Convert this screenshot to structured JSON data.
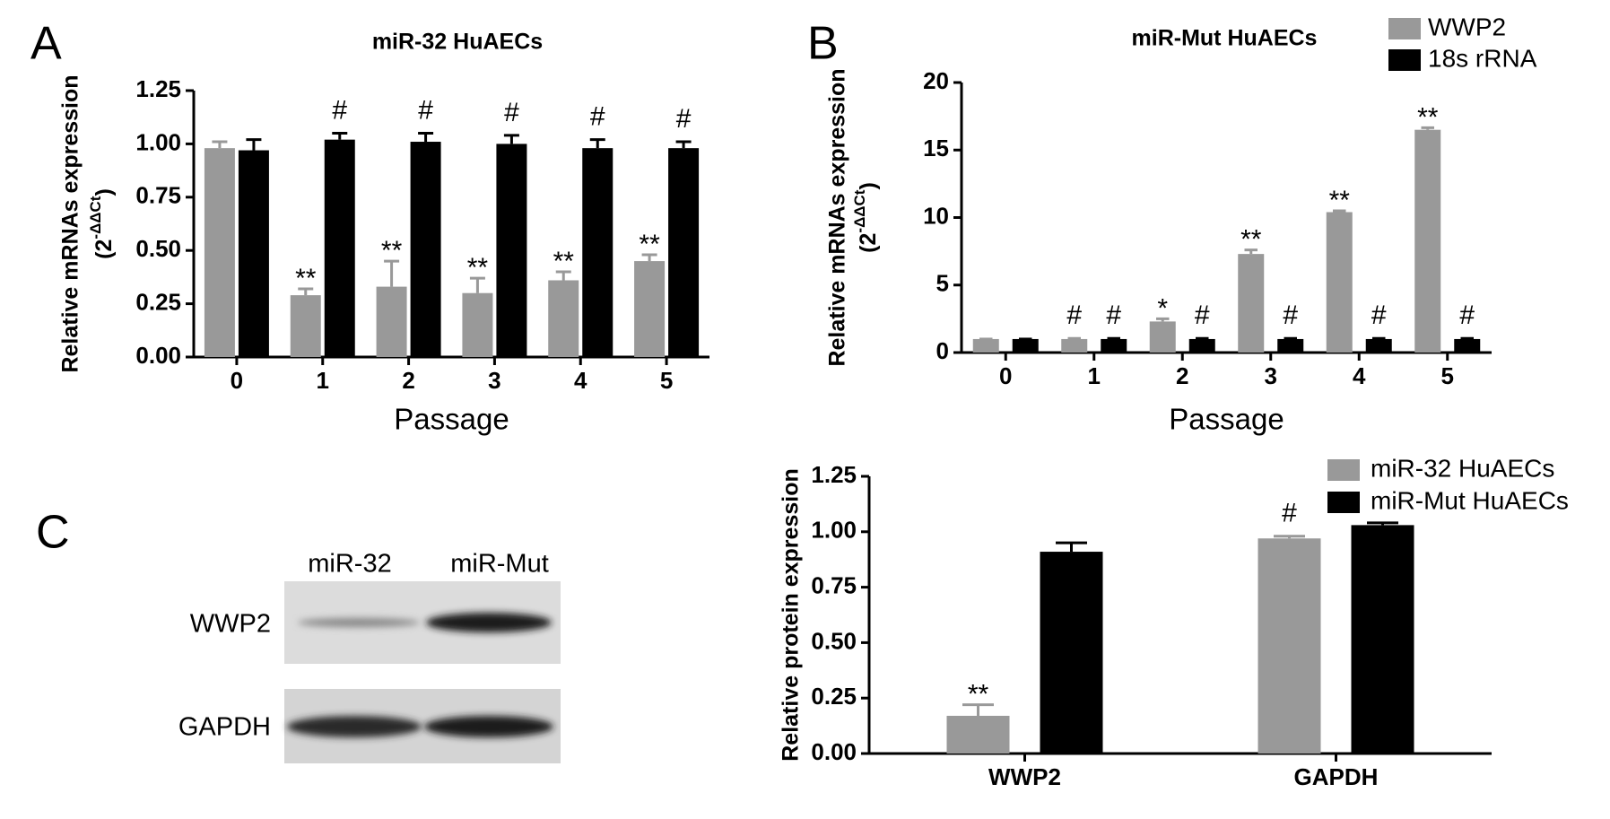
{
  "chart_data": [
    {
      "type": "bar",
      "panel_label": "A",
      "title": "miR-32 HuAECs",
      "ylabel": "Relative mRNAs expression",
      "ylabel_unit": [
        "(2",
        "-ΔΔCt",
        ")"
      ],
      "xlabel": "Passage",
      "categories": [
        "0",
        "1",
        "2",
        "3",
        "4",
        "5"
      ],
      "series": [
        {
          "color": "#999999",
          "values": [
            0.98,
            0.29,
            0.33,
            0.3,
            0.36,
            0.45
          ],
          "errors": [
            0.03,
            0.03,
            0.12,
            0.07,
            0.04,
            0.03
          ],
          "annotations": [
            null,
            "**",
            "**",
            "**",
            "**",
            "**"
          ]
        },
        {
          "color": "#000000",
          "values": [
            0.97,
            1.02,
            1.01,
            1.0,
            0.98,
            0.98
          ],
          "errors": [
            0.05,
            0.03,
            0.04,
            0.04,
            0.04,
            0.03
          ],
          "annotations": [
            null,
            "#",
            "#",
            "#",
            "#",
            "#"
          ]
        }
      ],
      "ylim": [
        0,
        1.25
      ],
      "yticks": [
        {
          "value": 0,
          "label": "0.00"
        },
        {
          "value": 0.25,
          "label": "0.25"
        },
        {
          "value": 0.5,
          "label": "0.50"
        },
        {
          "value": 0.75,
          "label": "0.75"
        },
        {
          "value": 1,
          "label": "1.00"
        },
        {
          "value": 1.25,
          "label": "1.25"
        }
      ]
    },
    {
      "type": "bar",
      "panel_label": "B",
      "title": "miR-Mut HuAECs",
      "ylabel": "Relative mRNAs expression",
      "ylabel_unit": [
        "(2",
        "-ΔΔCt",
        ")"
      ],
      "xlabel": "Passage",
      "categories": [
        "0",
        "1",
        "2",
        "3",
        "4",
        "5"
      ],
      "series": [
        {
          "name": "WWP2",
          "color": "#999999",
          "values": [
            1,
            1,
            2.3,
            7.3,
            10.4,
            16.5
          ],
          "errors": [
            0,
            0.05,
            0.2,
            0.3,
            0.1,
            0.15
          ],
          "annotations": [
            null,
            "#",
            "*",
            "**",
            "**",
            "**"
          ]
        },
        {
          "name": "18s rRNA",
          "color": "#000000",
          "values": [
            1,
            1,
            1,
            1,
            1,
            1
          ],
          "errors": [
            0,
            0.05,
            0.05,
            0.05,
            0.05,
            0.05
          ],
          "annotations": [
            null,
            "#",
            "#",
            "#",
            "#",
            "#"
          ]
        }
      ],
      "ylim": [
        0,
        20
      ],
      "yticks": [
        0,
        5,
        10,
        15,
        20
      ],
      "legend": "upper right"
    },
    {
      "type": "bar",
      "ylabel": "Relative protein expression",
      "categories": [
        "WWP2",
        "GAPDH"
      ],
      "series": [
        {
          "name": "miR-32 HuAECs",
          "color": "#999999",
          "values": [
            0.17,
            0.97
          ],
          "errors": [
            0.05,
            0.01
          ],
          "annotations": [
            "**",
            "#"
          ]
        },
        {
          "name": "miR-Mut HuAECs",
          "color": "#000000",
          "values": [
            0.91,
            1.03
          ],
          "errors": [
            0.04,
            0.01
          ],
          "annotations": [
            null,
            null
          ]
        }
      ],
      "ylim": [
        0,
        1.25
      ],
      "yticks": [
        {
          "value": 0,
          "label": "0.00"
        },
        {
          "value": 0.25,
          "label": "0.25"
        },
        {
          "value": 0.5,
          "label": "0.50"
        },
        {
          "value": 0.75,
          "label": "0.75"
        },
        {
          "value": 1,
          "label": "1.00"
        },
        {
          "value": 1.25,
          "label": "1.25"
        }
      ],
      "legend": "upper right"
    }
  ],
  "blot": {
    "panel_label": "C",
    "columns": [
      "miR-32",
      "miR-Mut"
    ],
    "rows": [
      "WWP2",
      "GAPDH"
    ]
  }
}
